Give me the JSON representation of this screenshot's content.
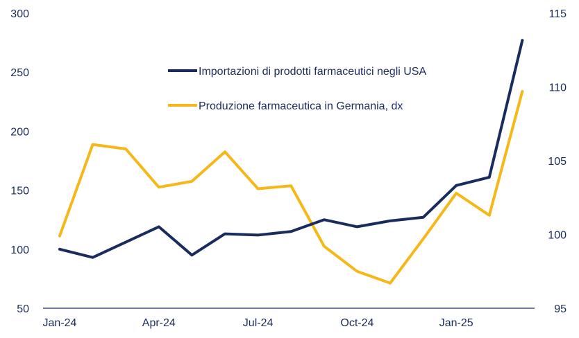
{
  "chart_data": {
    "type": "line",
    "title": "",
    "categories": [
      "Jan-24",
      "Feb-24",
      "Mar-24",
      "Apr-24",
      "May-24",
      "Jun-24",
      "Jul-24",
      "Aug-24",
      "Sep-24",
      "Oct-24",
      "Nov-24",
      "Dec-24",
      "Jan-25",
      "Feb-25",
      "Mar-25"
    ],
    "x_tick_labels": [
      "Jan-24",
      "Apr-24",
      "Jul-24",
      "Oct-24",
      "Jan-25"
    ],
    "left_axis": {
      "ylim": [
        50,
        300
      ],
      "ticks": [
        300,
        250,
        200,
        150,
        100,
        50
      ]
    },
    "right_axis": {
      "ylim": [
        95,
        115
      ],
      "ticks": [
        115,
        110,
        105,
        100,
        95
      ]
    },
    "series": [
      {
        "name": "Importazioni di prodotti farmaceutici negli USA",
        "axis": "left",
        "color": "#1a2b5e",
        "values": [
          100,
          93,
          106,
          119,
          95,
          113,
          112,
          115,
          125,
          119,
          124,
          127,
          154,
          161,
          277
        ]
      },
      {
        "name": "Produzione farmaceutica in Germania, dx",
        "axis": "right",
        "color": "#f5b818",
        "values": [
          99.9,
          106.1,
          105.8,
          103.2,
          103.6,
          105.6,
          103.1,
          103.3,
          99.2,
          97.5,
          96.7,
          99.7,
          102.8,
          101.3,
          109.7
        ]
      }
    ],
    "legend": "upper-center"
  }
}
